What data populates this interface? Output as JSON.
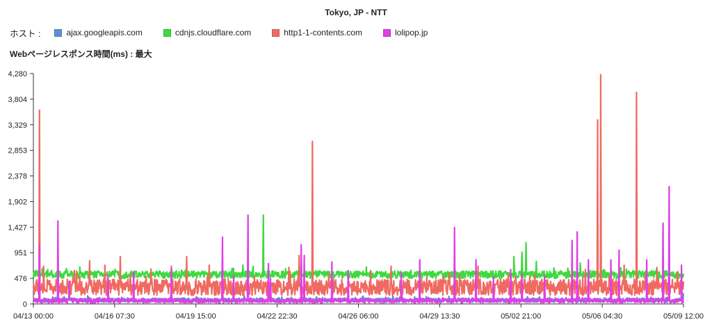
{
  "chart_data": {
    "type": "line",
    "title": "Tokyo, JP - NTT",
    "legend_label": "ホスト :",
    "ylabel": "Webページレスポンス時間(ms) : 最大",
    "xlabel": "",
    "legend_position": "top-left",
    "grid": false,
    "ylim": [
      0,
      4280
    ],
    "y_ticks": [
      "4,280",
      "3,804",
      "3,329",
      "2,853",
      "2,378",
      "1,902",
      "1,427",
      "951",
      "476",
      "0"
    ],
    "y_tick_values": [
      4280,
      3804,
      3329,
      2853,
      2378,
      1902,
      1427,
      951,
      476,
      0
    ],
    "x_ticks": [
      "04/13 00:00",
      "04/16 07:30",
      "04/19 15:00",
      "04/22 22:30",
      "04/26 06:00",
      "04/29 13:30",
      "05/02 21:00",
      "05/06 04:30",
      "05/09 12:00"
    ],
    "x_tick_hours": [
      0,
      79.5,
      159,
      238.5,
      318,
      397.5,
      477,
      556.5,
      636
    ],
    "x_range_hours": [
      0,
      636
    ],
    "series": [
      {
        "name": "ajax.googleapis.com",
        "color": "#5a92d0",
        "base": 70,
        "noise": 40,
        "spikes": [
          [
            22,
            120
          ],
          [
            120,
            110
          ],
          [
            160,
            130
          ],
          [
            240,
            115
          ],
          [
            315,
            120
          ],
          [
            420,
            110
          ],
          [
            505,
            125
          ],
          [
            600,
            120
          ],
          [
            636,
            200
          ]
        ]
      },
      {
        "name": "cdnjs.cloudflare.com",
        "color": "#3fd93f",
        "base": 545,
        "noise": 70,
        "spikes": [
          [
            225,
            1650
          ],
          [
            215,
            700
          ],
          [
            205,
            720
          ],
          [
            262,
            830
          ],
          [
            470,
            880
          ],
          [
            478,
            960
          ],
          [
            482,
            1140
          ],
          [
            492,
            790
          ],
          [
            535,
            760
          ],
          [
            558,
            640
          ]
        ]
      },
      {
        "name": "http1-1-contents.com",
        "color": "#ef6a60",
        "base": 310,
        "noise": 150,
        "spikes": [
          [
            6,
            3600
          ],
          [
            10,
            700
          ],
          [
            40,
            620
          ],
          [
            55,
            800
          ],
          [
            70,
            720
          ],
          [
            85,
            880
          ],
          [
            115,
            650
          ],
          [
            135,
            700
          ],
          [
            150,
            880
          ],
          [
            172,
            720
          ],
          [
            210,
            660
          ],
          [
            250,
            680
          ],
          [
            260,
            900
          ],
          [
            273,
            3020
          ],
          [
            330,
            620
          ],
          [
            350,
            700
          ],
          [
            435,
            700
          ],
          [
            540,
            640
          ],
          [
            552,
            3420
          ],
          [
            555,
            4260
          ],
          [
            578,
            720
          ],
          [
            590,
            3930
          ],
          [
            610,
            680
          ],
          [
            630,
            600
          ]
        ]
      },
      {
        "name": "lolipop.jp",
        "color": "#e03ee6",
        "base": 60,
        "noise": 40,
        "spikes": [
          [
            6,
            1100
          ],
          [
            24,
            1540
          ],
          [
            35,
            420
          ],
          [
            73,
            480
          ],
          [
            98,
            600
          ],
          [
            135,
            660
          ],
          [
            185,
            1240
          ],
          [
            196,
            520
          ],
          [
            210,
            1650
          ],
          [
            230,
            750
          ],
          [
            232,
            470
          ],
          [
            262,
            1100
          ],
          [
            265,
            900
          ],
          [
            292,
            780
          ],
          [
            308,
            620
          ],
          [
            360,
            580
          ],
          [
            378,
            820
          ],
          [
            412,
            1420
          ],
          [
            433,
            820
          ],
          [
            450,
            500
          ],
          [
            467,
            640
          ],
          [
            478,
            560
          ],
          [
            500,
            520
          ],
          [
            527,
            1180
          ],
          [
            532,
            1340
          ],
          [
            543,
            820
          ],
          [
            565,
            820
          ],
          [
            573,
            1000
          ],
          [
            600,
            820
          ],
          [
            616,
            1500
          ],
          [
            622,
            2180
          ],
          [
            634,
            720
          ]
        ]
      }
    ]
  }
}
